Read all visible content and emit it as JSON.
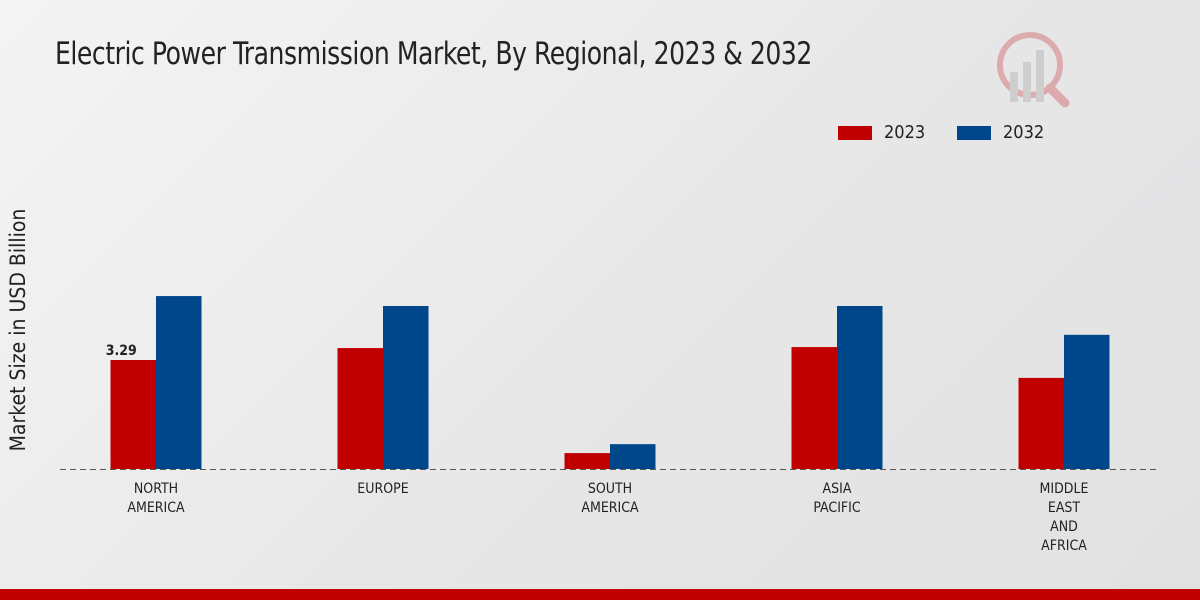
{
  "title": "Electric Power Transmission Market, By Regional, 2023 & 2032",
  "chart_data": {
    "type": "bar",
    "title": "Electric Power Transmission Market, By Regional, 2023 & 2032",
    "xlabel": "",
    "ylabel": "Market Size in USD Billion",
    "categories": [
      [
        "NORTH",
        "AMERICA"
      ],
      [
        "EUROPE"
      ],
      [
        "SOUTH",
        "AMERICA"
      ],
      [
        "ASIA",
        "PACIFIC"
      ],
      [
        "MIDDLE",
        "EAST",
        "AND",
        "AFRICA"
      ]
    ],
    "series": [
      {
        "name": "2023",
        "color": "#c00000",
        "values": [
          3.29,
          3.65,
          0.48,
          3.68,
          2.75
        ]
      },
      {
        "name": "2032",
        "color": "#00468b",
        "values": [
          5.22,
          4.92,
          0.75,
          4.92,
          4.05
        ]
      }
    ],
    "data_labels": [
      {
        "series": 0,
        "index": 0,
        "text": "3.29"
      }
    ],
    "ylim": [
      0,
      6
    ],
    "grid": false,
    "legend_position": "top-right"
  }
}
